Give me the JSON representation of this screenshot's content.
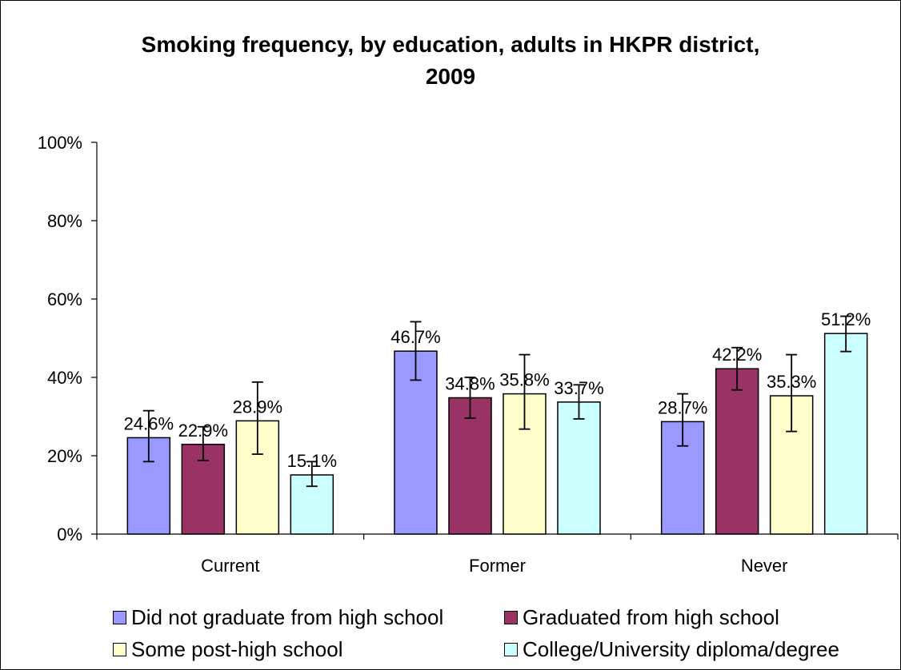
{
  "chart_data": {
    "type": "bar",
    "title_line1": "Smoking frequency, by education, adults in HKPR district,",
    "title_line2": "2009",
    "categories": [
      "Current",
      "Former",
      "Never"
    ],
    "ylim": [
      0,
      100
    ],
    "yticks": [
      "0%",
      "20%",
      "40%",
      "60%",
      "80%",
      "100%"
    ],
    "grid": false,
    "legend_position": "bottom",
    "series": [
      {
        "name": "Did not graduate from high school",
        "color": "#9999FF",
        "values": [
          24.6,
          46.7,
          28.7
        ],
        "labels": [
          "24.6%",
          "46.7%",
          "28.7%"
        ],
        "err_low": [
          18.5,
          39.3,
          22.5
        ],
        "err_high": [
          31.5,
          54.2,
          35.8
        ]
      },
      {
        "name": "Graduated from high school",
        "color": "#993366",
        "values": [
          22.9,
          34.8,
          42.2
        ],
        "labels": [
          "22.9%",
          "34.8%",
          "42.2%"
        ],
        "err_low": [
          18.8,
          29.6,
          36.8
        ],
        "err_high": [
          27.4,
          40.0,
          47.6
        ]
      },
      {
        "name": "Some post-high school",
        "color": "#FFFFCC",
        "values": [
          28.9,
          35.8,
          35.3
        ],
        "labels": [
          "28.9%",
          "35.8%",
          "35.3%"
        ],
        "err_low": [
          20.4,
          26.8,
          26.2
        ],
        "err_high": [
          38.8,
          45.8,
          45.8
        ]
      },
      {
        "name": "College/University diploma/degree",
        "color": "#CCFFFF",
        "values": [
          15.1,
          33.7,
          51.2
        ],
        "labels": [
          "15.1%",
          "33.7%",
          "51.2%"
        ],
        "err_low": [
          12.2,
          29.4,
          46.6
        ],
        "err_high": [
          18.5,
          38.1,
          55.6
        ]
      }
    ]
  }
}
